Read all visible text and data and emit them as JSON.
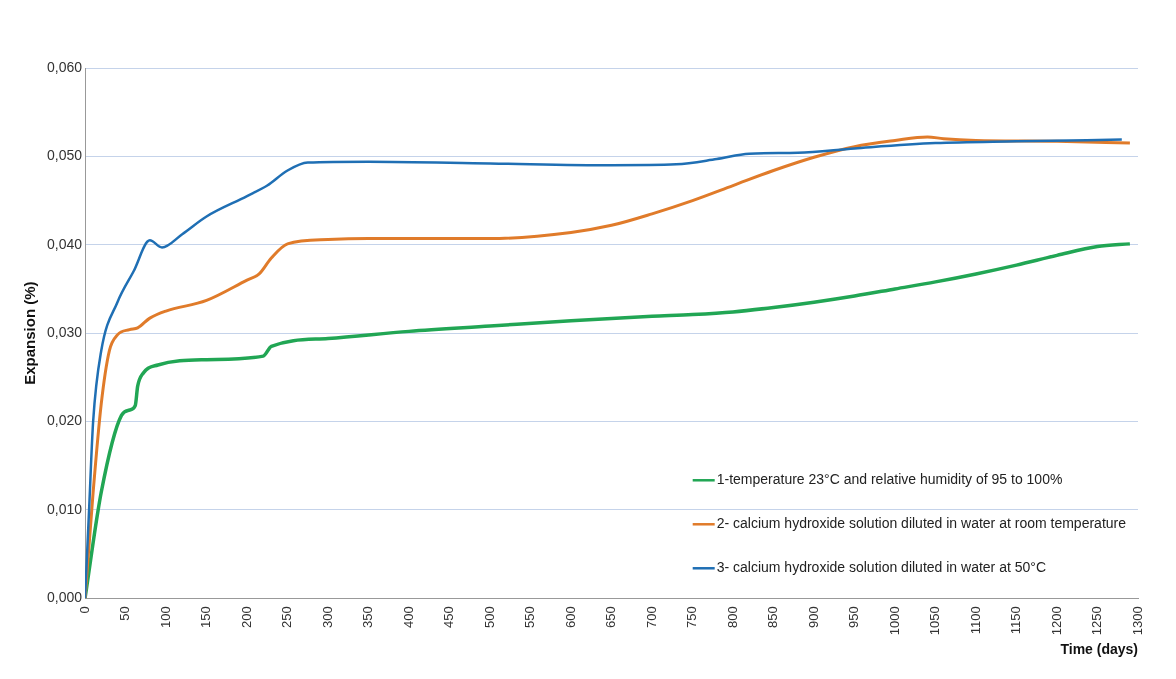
{
  "chart_data": {
    "type": "line",
    "xlabel": "Time (days)",
    "ylabel": "Expansion (%)",
    "xlim": [
      0,
      1300
    ],
    "xticks": [
      0,
      50,
      100,
      150,
      200,
      250,
      300,
      350,
      400,
      450,
      500,
      550,
      600,
      650,
      700,
      750,
      800,
      850,
      900,
      950,
      1000,
      1050,
      1100,
      1150,
      1200,
      1250,
      1300
    ],
    "ylim": [
      0,
      0.06
    ],
    "yticks": [
      {
        "value": 0,
        "label": "0,000"
      },
      {
        "value": 0.01,
        "label": "0,010"
      },
      {
        "value": 0.02,
        "label": "0,020"
      },
      {
        "value": 0.03,
        "label": "0,030"
      },
      {
        "value": 0.04,
        "label": "0,040"
      },
      {
        "value": 0.05,
        "label": "0,050"
      },
      {
        "value": 0.06,
        "label": "0,060"
      }
    ],
    "grid": "y",
    "legend": "bottom right",
    "marker": "none",
    "line_style": "solid",
    "series": [
      {
        "name": "1-temperature 23°C and relative humidity of 95 to 100%",
        "color": "#21a654",
        "x": [
          0,
          20,
          45,
          55,
          62,
          65,
          72,
          90,
          150,
          220,
          230,
          300,
          400,
          500,
          600,
          700,
          750,
          800,
          850,
          900,
          950,
          1000,
          1050,
          1100,
          1150,
          1200,
          1250,
          1290
        ],
        "values": [
          0,
          0.012,
          0.0207,
          0.0213,
          0.0218,
          0.024,
          0.0255,
          0.0264,
          0.027,
          0.0274,
          0.0285,
          0.0294,
          0.0302,
          0.0308,
          0.0314,
          0.0319,
          0.0321,
          0.0324,
          0.0329,
          0.0335,
          0.0342,
          0.035,
          0.0358,
          0.0367,
          0.0377,
          0.0388,
          0.0398,
          0.0401
        ]
      },
      {
        "name": "2- calcium hydroxide solution diluted in water at room temperature",
        "color": "#e07b2a",
        "x": [
          0,
          10,
          20,
          30,
          40,
          55,
          65,
          80,
          100,
          150,
          200,
          215,
          230,
          250,
          300,
          350,
          500,
          600,
          650,
          700,
          750,
          800,
          850,
          900,
          950,
          1000,
          1040,
          1060,
          1100,
          1200,
          1290
        ],
        "values": [
          0,
          0.012,
          0.022,
          0.028,
          0.0298,
          0.0304,
          0.0306,
          0.0317,
          0.0325,
          0.0337,
          0.036,
          0.0367,
          0.0385,
          0.0401,
          0.0406,
          0.0407,
          0.0407,
          0.0414,
          0.0422,
          0.0435,
          0.045,
          0.0467,
          0.0484,
          0.0499,
          0.0511,
          0.0518,
          0.0522,
          0.052,
          0.0518,
          0.0517,
          0.0515
        ]
      },
      {
        "name": "3- calcium hydroxide solution diluted in water at 50°C",
        "color": "#1f6fb4",
        "x": [
          0,
          5,
          10,
          20,
          40,
          60,
          80,
          95,
          120,
          150,
          200,
          225,
          250,
          275,
          350,
          500,
          650,
          730,
          780,
          820,
          880,
          950,
          1050,
          1150,
          1280
        ],
        "values": [
          0,
          0.01,
          0.02,
          0.028,
          0.0335,
          0.037,
          0.0405,
          0.0397,
          0.0412,
          0.0432,
          0.0455,
          0.0467,
          0.0484,
          0.0493,
          0.0494,
          0.0492,
          0.049,
          0.0491,
          0.0497,
          0.0503,
          0.0504,
          0.0509,
          0.0515,
          0.0517,
          0.0519
        ]
      }
    ]
  }
}
